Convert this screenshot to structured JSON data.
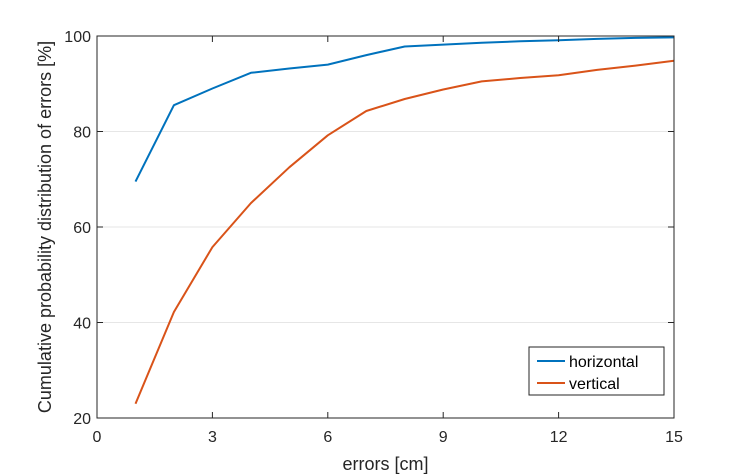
{
  "chart_data": {
    "type": "line",
    "xlabel": "errors [cm]",
    "ylabel": "Cumulative probability distribution of  errors [%]",
    "xlim": [
      0,
      15
    ],
    "ylim": [
      20,
      100
    ],
    "xticks": [
      "0",
      "3",
      "6",
      "9",
      "12",
      "15"
    ],
    "yticks": [
      "20",
      "40",
      "60",
      "80",
      "100"
    ],
    "grid": "horizontal",
    "legend_position": "bottom-right",
    "series": [
      {
        "name": "horizontal",
        "color": "#0072BD",
        "x": [
          1,
          2,
          3,
          4,
          5,
          6,
          7,
          8,
          9,
          10,
          11,
          12,
          13,
          14,
          15
        ],
        "y": [
          69.5,
          85.5,
          89.0,
          92.3,
          93.2,
          94.0,
          96.0,
          97.8,
          98.2,
          98.6,
          98.9,
          99.1,
          99.4,
          99.6,
          99.7
        ]
      },
      {
        "name": "vertical",
        "color": "#D95319",
        "x": [
          1,
          2,
          3,
          4,
          5,
          6,
          7,
          8,
          9,
          10,
          11,
          12,
          13,
          14,
          15
        ],
        "y": [
          23.0,
          42.2,
          55.8,
          65.0,
          72.5,
          79.2,
          84.3,
          86.8,
          88.8,
          90.5,
          91.2,
          91.8,
          92.9,
          93.8,
          94.8
        ]
      }
    ]
  }
}
